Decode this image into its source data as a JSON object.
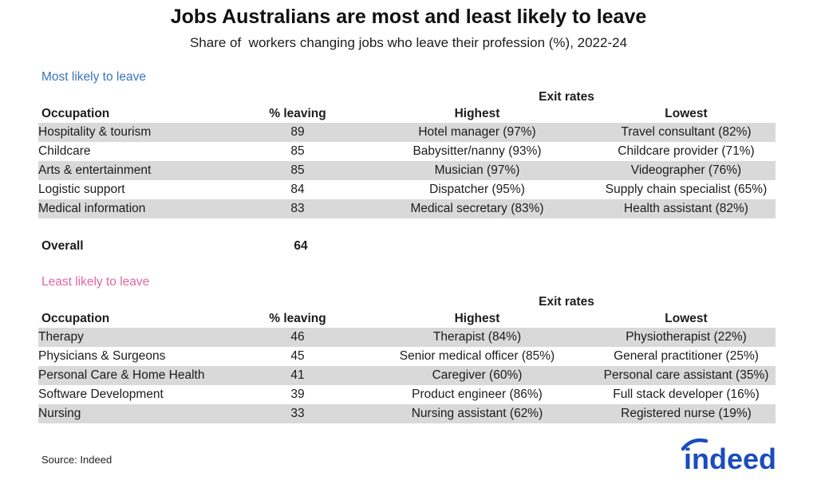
{
  "title": "Jobs Australians are most and least likely to leave",
  "subtitle": "Share of  workers changing jobs who leave their profession (%), 2022-24",
  "colors": {
    "section_most_label": "#3b74b9",
    "section_least_label": "#df689f",
    "row_stripe": "#d9d9d9",
    "text": "#1c1c1c",
    "logo_blue": "#1a4dbd"
  },
  "chart_data": {
    "type": "table",
    "tables": [
      {
        "section_label": "Most likely to leave",
        "exit_rates_header": "Exit rates",
        "columns": [
          "Occupation",
          "% leaving",
          "Highest",
          "Lowest"
        ],
        "rows": [
          [
            "Hospitality & tourism",
            "89",
            "Hotel manager (97%)",
            "Travel consultant (82%)"
          ],
          [
            "Childcare",
            "85",
            "Babysitter/nanny (93%)",
            "Childcare provider (71%)"
          ],
          [
            "Arts & entertainment",
            "85",
            "Musician (97%)",
            "Videographer (76%)"
          ],
          [
            "Logistic support",
            "84",
            "Dispatcher (95%)",
            "Supply chain specialist (65%)"
          ],
          [
            "Medical information",
            "83",
            "Medical secretary (83%)",
            "Health assistant (82%)"
          ]
        ]
      },
      {
        "section_label": "Least likely to leave",
        "exit_rates_header": "Exit rates",
        "columns": [
          "Occupation",
          "% leaving",
          "Highest",
          "Lowest"
        ],
        "rows": [
          [
            "Therapy",
            "46",
            "Therapist (84%)",
            "Physiotherapist (22%)"
          ],
          [
            "Physicians & Surgeons",
            "45",
            "Senior medical officer (85%)",
            "General practitioner (25%)"
          ],
          [
            "Personal Care & Home Health",
            "41",
            "Caregiver (60%)",
            "Personal care assistant (35%)"
          ],
          [
            "Software Development",
            "39",
            "Product engineer (86%)",
            "Full stack developer (16%)"
          ],
          [
            "Nursing",
            "33",
            "Nursing assistant (62%)",
            "Registered nurse (19%)"
          ]
        ]
      }
    ],
    "overall": {
      "label": "Overall",
      "value": "64"
    }
  },
  "footer": {
    "source": "Source: Indeed",
    "logo_text": "indeed"
  }
}
